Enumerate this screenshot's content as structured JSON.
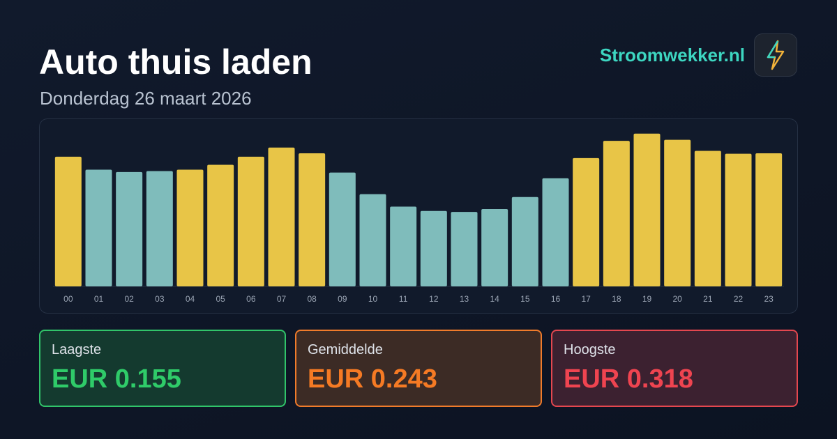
{
  "header": {
    "title": "Auto thuis laden",
    "subtitle": "Donderdag 26 maart 2026",
    "brand": "Stroomwekker.nl"
  },
  "chart_data": {
    "type": "bar",
    "categories": [
      "00",
      "01",
      "02",
      "03",
      "04",
      "05",
      "06",
      "07",
      "08",
      "09",
      "10",
      "11",
      "12",
      "13",
      "14",
      "15",
      "16",
      "17",
      "18",
      "19",
      "20",
      "21",
      "22",
      "23"
    ],
    "values": [
      0.27,
      0.243,
      0.238,
      0.24,
      0.243,
      0.253,
      0.27,
      0.289,
      0.277,
      0.237,
      0.192,
      0.166,
      0.157,
      0.155,
      0.161,
      0.186,
      0.225,
      0.267,
      0.303,
      0.318,
      0.305,
      0.282,
      0.276,
      0.277
    ],
    "colors": [
      "#e8c547",
      "#7fbcbb",
      "#7fbcbb",
      "#7fbcbb",
      "#e8c547",
      "#e8c547",
      "#e8c547",
      "#e8c547",
      "#e8c547",
      "#7fbcbb",
      "#7fbcbb",
      "#7fbcbb",
      "#7fbcbb",
      "#7fbcbb",
      "#7fbcbb",
      "#7fbcbb",
      "#7fbcbb",
      "#e8c547",
      "#e8c547",
      "#e8c547",
      "#e8c547",
      "#e8c547",
      "#e8c547",
      "#e8c547"
    ],
    "ylim": [
      0,
      0.335
    ]
  },
  "stats": [
    {
      "label": "Laagste",
      "value": "EUR 0.155"
    },
    {
      "label": "Gemiddelde",
      "value": "EUR 0.243"
    },
    {
      "label": "Hoogste",
      "value": "EUR 0.318"
    }
  ]
}
